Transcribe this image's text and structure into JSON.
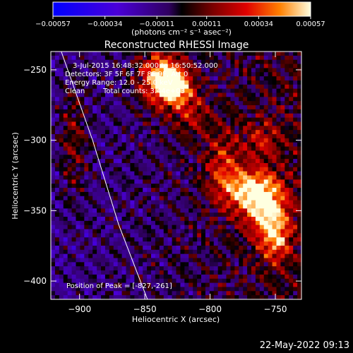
{
  "chart_data": {
    "type": "heatmap",
    "title": "Reconstructed RHESSI Image",
    "xlabel": "Heliocentric X (arcsec)",
    "ylabel": "Heliocentric Y (arcsec)",
    "xlim": [
      -922,
      -730
    ],
    "ylim": [
      -413,
      -237
    ],
    "xticks": [
      -900,
      -850,
      -800,
      -750
    ],
    "yticks": [
      -400,
      -350,
      -300,
      -250
    ],
    "xtick_labels": [
      "−900",
      "−850",
      "−800",
      "−750"
    ],
    "ytick_labels": [
      "−400",
      "−350",
      "−300",
      "−250"
    ],
    "colorbar": {
      "min": -0.00057,
      "max": 0.00057,
      "ticks": [
        -0.00057,
        -0.00034,
        -0.00011,
        0.00011,
        0.00034,
        0.00057
      ],
      "tick_labels": [
        "−0.00057",
        "−0.00034",
        "−0.00011",
        "0.00011",
        "0.00034",
        "0.00057"
      ],
      "unit_label": "(photons cm⁻² s⁻¹ asec⁻²)"
    },
    "sources": [
      {
        "x": -838,
        "y": -256,
        "peak": 0.00055,
        "sx": 12,
        "sy": 14
      },
      {
        "x": -827,
        "y": -261,
        "peak": 0.00057,
        "sx": 8,
        "sy": 8
      },
      {
        "x": -770,
        "y": -335,
        "peak": 0.00045,
        "sx": 14,
        "sy": 10
      },
      {
        "x": -758,
        "y": -348,
        "peak": 0.00048,
        "sx": 12,
        "sy": 14
      },
      {
        "x": -750,
        "y": -370,
        "peak": 0.0004,
        "sx": 8,
        "sy": 12
      },
      {
        "x": -790,
        "y": -318,
        "peak": 0.00028,
        "sx": 10,
        "sy": 18
      },
      {
        "x": -905,
        "y": -300,
        "peak": 0.00022,
        "sx": 8,
        "sy": 30
      },
      {
        "x": -760,
        "y": -300,
        "peak": 0.00022,
        "sx": 10,
        "sy": 10
      },
      {
        "x": -815,
        "y": -280,
        "peak": 0.00024,
        "sx": 10,
        "sy": 12
      }
    ],
    "limb": [
      [
        -914,
        -237
      ],
      [
        -890,
        -300
      ],
      [
        -870,
        -360
      ],
      [
        -848,
        -413
      ]
    ]
  },
  "annotations": {
    "time_range": "3-Jul-2015 16:48:32.000 to 16:50:52.000",
    "detectors": "Detectors: 3F 5F 6F 7F 8F 9F, Att 0",
    "energy": "Energy Range: 12.0 - 25.0 keV",
    "method": "Clean",
    "counts": "Total counts: 3.44e+03",
    "peak": "Position of Peak = [-827,-261]"
  },
  "timestamp": "22-May-2022 09:13"
}
